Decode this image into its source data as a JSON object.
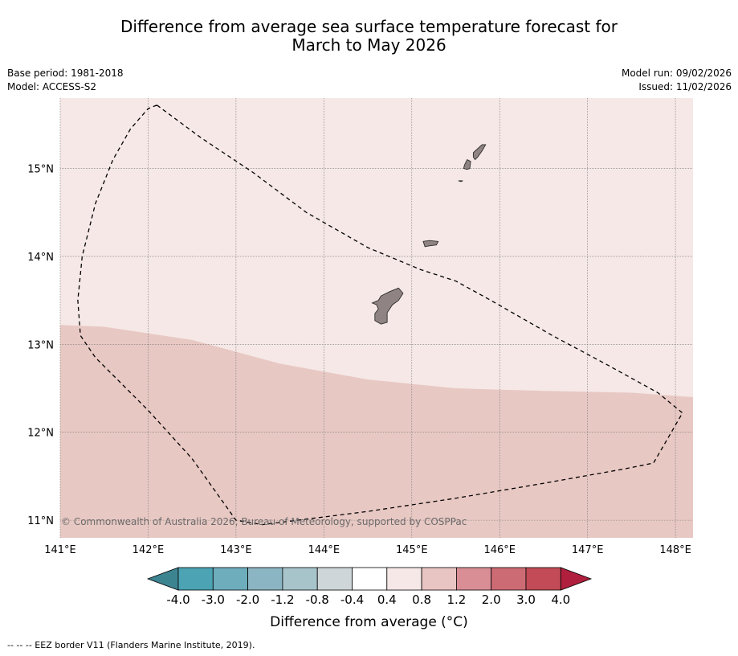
{
  "title_line1": "Difference from average sea surface temperature forecast for",
  "title_line2": "March to May 2026",
  "base_period": "Base period: 1981-2018",
  "model": "Model: ACCESS-S2",
  "model_run": "Model run: 09/02/2026",
  "issued": "Issued: 11/02/2026",
  "map": {
    "lon_range": [
      141,
      148.2
    ],
    "lat_range": [
      10.8,
      15.8
    ],
    "lon_ticks": [
      {
        "value": 141,
        "label": "141°E"
      },
      {
        "value": 142,
        "label": "142°E"
      },
      {
        "value": 143,
        "label": "143°E"
      },
      {
        "value": 144,
        "label": "144°E"
      },
      {
        "value": 145,
        "label": "145°E"
      },
      {
        "value": 146,
        "label": "146°E"
      },
      {
        "value": 147,
        "label": "147°E"
      },
      {
        "value": 148,
        "label": "148°E"
      }
    ],
    "lat_ticks": [
      {
        "value": 15,
        "label": "15°N"
      },
      {
        "value": 14,
        "label": "14°N"
      },
      {
        "value": 13,
        "label": "13°N"
      },
      {
        "value": 12,
        "label": "12°N"
      },
      {
        "value": 11,
        "label": "11°N"
      }
    ],
    "zones": [
      {
        "name": "0.4 to 0.8",
        "color": "#f5e8e6"
      },
      {
        "name": "0.8 to 1.2",
        "color": "#e8c8c3"
      }
    ],
    "zone_boundary": [
      [
        141,
        13.22
      ],
      [
        141.5,
        13.2
      ],
      [
        142.5,
        13.05
      ],
      [
        143.5,
        12.78
      ],
      [
        144.5,
        12.6
      ],
      [
        145.5,
        12.5
      ],
      [
        146.5,
        12.47
      ],
      [
        147.5,
        12.45
      ],
      [
        148.2,
        12.4
      ]
    ],
    "eez_border": [
      [
        142.1,
        15.72
      ],
      [
        142,
        15.68
      ],
      [
        141.8,
        15.45
      ],
      [
        141.6,
        15.1
      ],
      [
        141.4,
        14.6
      ],
      [
        141.25,
        14.0
      ],
      [
        141.2,
        13.5
      ],
      [
        141.23,
        13.1
      ],
      [
        141.4,
        12.85
      ],
      [
        142,
        12.25
      ],
      [
        142.5,
        11.7
      ],
      [
        143,
        11.0
      ],
      [
        143.3,
        10.95
      ],
      [
        143.7,
        11.0
      ],
      [
        144.5,
        11.1
      ],
      [
        145.5,
        11.25
      ],
      [
        146.5,
        11.42
      ],
      [
        147.4,
        11.58
      ],
      [
        147.75,
        11.65
      ],
      [
        148.08,
        12.22
      ],
      [
        147.8,
        12.45
      ],
      [
        147.2,
        12.78
      ],
      [
        146.6,
        13.1
      ],
      [
        145.9,
        13.5
      ],
      [
        145.5,
        13.72
      ],
      [
        145.1,
        13.85
      ],
      [
        144.5,
        14.1
      ],
      [
        143.8,
        14.5
      ],
      [
        143.2,
        14.95
      ],
      [
        142.6,
        15.35
      ],
      [
        142.1,
        15.72
      ]
    ],
    "islands": [
      {
        "name": "Guam",
        "points": [
          [
            144.65,
            13.55
          ],
          [
            144.75,
            13.6
          ],
          [
            144.85,
            13.64
          ],
          [
            144.9,
            13.58
          ],
          [
            144.85,
            13.5
          ],
          [
            144.78,
            13.45
          ],
          [
            144.72,
            13.36
          ],
          [
            144.72,
            13.25
          ],
          [
            144.65,
            13.23
          ],
          [
            144.58,
            13.27
          ],
          [
            144.58,
            13.35
          ],
          [
            144.62,
            13.4
          ],
          [
            144.6,
            13.45
          ],
          [
            144.55,
            13.47
          ],
          [
            144.62,
            13.5
          ]
        ]
      },
      {
        "name": "Rota",
        "points": [
          [
            145.13,
            14.17
          ],
          [
            145.2,
            14.18
          ],
          [
            145.3,
            14.17
          ],
          [
            145.28,
            14.13
          ],
          [
            145.2,
            14.12
          ],
          [
            145.15,
            14.11
          ]
        ]
      },
      {
        "name": "Saipan",
        "points": [
          [
            145.7,
            15.18
          ],
          [
            145.8,
            15.27
          ],
          [
            145.84,
            15.27
          ],
          [
            145.8,
            15.2
          ],
          [
            145.75,
            15.13
          ],
          [
            145.72,
            15.1
          ],
          [
            145.7,
            15.13
          ]
        ]
      },
      {
        "name": "Tinian",
        "points": [
          [
            145.6,
            15.04
          ],
          [
            145.63,
            15.1
          ],
          [
            145.67,
            15.08
          ],
          [
            145.66,
            15.0
          ],
          [
            145.63,
            14.99
          ],
          [
            145.59,
            15.0
          ]
        ]
      },
      {
        "name": "Aguijan",
        "points": [
          [
            145.53,
            14.86
          ],
          [
            145.58,
            14.86
          ],
          [
            145.56,
            14.85
          ]
        ]
      }
    ],
    "copyright": "© Commonwealth of Australia 2026, Bureau of Meteorology, supported by COSPPac"
  },
  "colorbar": {
    "colors": [
      "#3d8491",
      "#4ba3b3",
      "#6dadbc",
      "#8bb5c2",
      "#a7c4ca",
      "#cfd6da",
      "#ffffff",
      "#f5e8e6",
      "#e8c4c2",
      "#d98e96",
      "#cd6b75",
      "#c24b57",
      "#b0203e"
    ],
    "tick_labels": [
      "-4.0",
      "-3.0",
      "-2.0",
      "-1.2",
      "-0.8",
      "-0.4",
      "0.4",
      "0.8",
      "1.2",
      "2.0",
      "3.0",
      "4.0"
    ],
    "title": "Difference from average (°C)"
  },
  "footnote": "--  --  -- EEZ border V11 (Flanders Marine Institute, 2019)."
}
